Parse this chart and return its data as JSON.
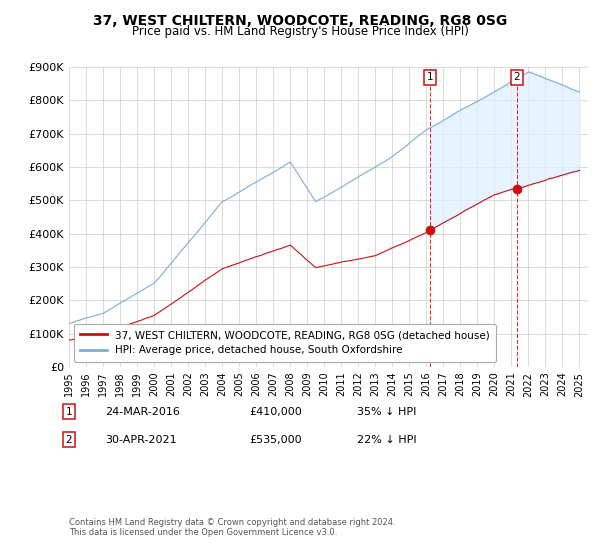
{
  "title": "37, WEST CHILTERN, WOODCOTE, READING, RG8 0SG",
  "subtitle": "Price paid vs. HM Land Registry's House Price Index (HPI)",
  "ylim": [
    0,
    900000
  ],
  "yticks": [
    0,
    100000,
    200000,
    300000,
    400000,
    500000,
    600000,
    700000,
    800000,
    900000
  ],
  "ytick_labels": [
    "£0",
    "£100K",
    "£200K",
    "£300K",
    "£400K",
    "£500K",
    "£600K",
    "£700K",
    "£800K",
    "£900K"
  ],
  "hpi_color": "#7bafd4",
  "price_color": "#cc1111",
  "fill_color": "#ddeeff",
  "purchase1_year": 2016.23,
  "purchase1_price": 410000,
  "purchase2_year": 2021.33,
  "purchase2_price": 535000,
  "purchase1_date": "24-MAR-2016",
  "purchase1_pct": "35% ↓ HPI",
  "purchase2_date": "30-APR-2021",
  "purchase2_pct": "22% ↓ HPI",
  "legend_label1": "37, WEST CHILTERN, WOODCOTE, READING, RG8 0SG (detached house)",
  "legend_label2": "HPI: Average price, detached house, South Oxfordshire",
  "footer": "Contains HM Land Registry data © Crown copyright and database right 2024.\nThis data is licensed under the Open Government Licence v3.0.",
  "bg_color": "#ffffff",
  "grid_color": "#cccccc"
}
